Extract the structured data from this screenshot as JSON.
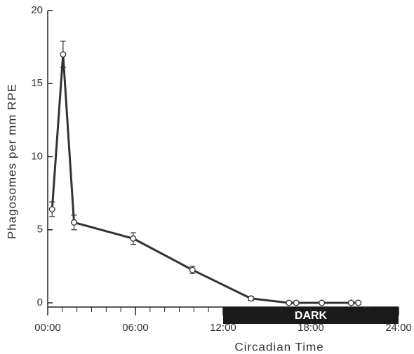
{
  "chart_data": {
    "type": "line",
    "xlabel": "Circadian Time",
    "ylabel": "Phagosomes per mm RPE",
    "x": [
      0.3,
      1.05,
      1.8,
      5.85,
      9.9,
      13.9,
      16.5,
      17.0,
      18.75,
      20.75,
      21.25
    ],
    "series": [
      {
        "name": "Phagosomes",
        "color": "#333333",
        "values": [
          6.4,
          17.0,
          5.5,
          4.4,
          2.25,
          0.3,
          0,
          0,
          0,
          0,
          0
        ],
        "errors": [
          0.5,
          0.9,
          0.5,
          0.4,
          0.25,
          0.15,
          0.1,
          0.1,
          0.1,
          0.1,
          0.1
        ]
      }
    ],
    "xlim": [
      0,
      24
    ],
    "xticks": [
      {
        "value": 0,
        "label": "00:00"
      },
      {
        "value": 6,
        "label": "06:00"
      },
      {
        "value": 12,
        "label": "12:00"
      },
      {
        "value": 18,
        "label": "18:00"
      },
      {
        "value": 24,
        "label": "24:00"
      }
    ],
    "xminorticks": [
      1,
      2,
      3,
      4,
      5,
      7,
      8,
      9,
      10,
      11,
      13,
      14,
      15,
      16,
      17,
      19,
      20,
      21,
      22,
      23
    ],
    "ylim": [
      0,
      20
    ],
    "yticks": [
      0,
      5,
      10,
      15,
      20
    ],
    "dark_period": {
      "label": "DARK",
      "start": 12,
      "end": 24
    }
  }
}
